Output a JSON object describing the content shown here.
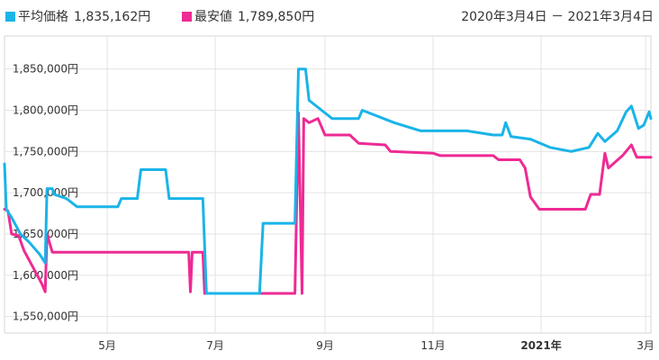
{
  "chart_data": {
    "type": "line",
    "date_range": "2020年3月4日 － 2021年3月4日",
    "ylim": [
      1530000,
      1890000
    ],
    "y_ticks": [
      {
        "value": 1550000,
        "label": "1,550,000円"
      },
      {
        "value": 1600000,
        "label": "1,600,000円"
      },
      {
        "value": 1650000,
        "label": "1,650,000円"
      },
      {
        "value": 1700000,
        "label": "1,700,000円"
      },
      {
        "value": 1750000,
        "label": "1,750,000円"
      },
      {
        "value": 1800000,
        "label": "1,800,000円"
      },
      {
        "value": 1850000,
        "label": "1,850,000円"
      }
    ],
    "xlim": [
      "2020-03-04",
      "2021-03-04"
    ],
    "x_ticks": [
      {
        "date": "2020-05-01",
        "label": "5月",
        "bold": false
      },
      {
        "date": "2020-07-01",
        "label": "7月",
        "bold": false
      },
      {
        "date": "2020-09-01",
        "label": "9月",
        "bold": false
      },
      {
        "date": "2020-11-01",
        "label": "11月",
        "bold": false
      },
      {
        "date": "2021-01-01",
        "label": "2021年",
        "bold": true
      },
      {
        "date": "2021-03-01",
        "label": "3月",
        "bold": false
      }
    ],
    "grid": true,
    "legend_position": "top-left",
    "series": [
      {
        "name": "平均価格",
        "legend_value": "1,835,162円",
        "color": "#1ab4e8",
        "points": [
          [
            "2020-03-04",
            1735000
          ],
          [
            "2020-03-05",
            1680000
          ],
          [
            "2020-03-08",
            1670000
          ],
          [
            "2020-03-13",
            1650000
          ],
          [
            "2020-03-18",
            1640000
          ],
          [
            "2020-03-24",
            1625000
          ],
          [
            "2020-03-27",
            1615000
          ],
          [
            "2020-03-28",
            1705000
          ],
          [
            "2020-03-31",
            1705000
          ],
          [
            "2020-04-01",
            1698000
          ],
          [
            "2020-04-08",
            1693000
          ],
          [
            "2020-04-14",
            1683000
          ],
          [
            "2020-05-07",
            1683000
          ],
          [
            "2020-05-09",
            1693000
          ],
          [
            "2020-05-18",
            1693000
          ],
          [
            "2020-05-20",
            1728000
          ],
          [
            "2020-06-03",
            1728000
          ],
          [
            "2020-06-05",
            1693000
          ],
          [
            "2020-06-24",
            1693000
          ],
          [
            "2020-06-26",
            1578000
          ],
          [
            "2020-07-26",
            1578000
          ],
          [
            "2020-07-28",
            1663000
          ],
          [
            "2020-08-15",
            1663000
          ],
          [
            "2020-08-17",
            1850000
          ],
          [
            "2020-08-21",
            1850000
          ],
          [
            "2020-08-23",
            1812000
          ],
          [
            "2020-09-05",
            1790000
          ],
          [
            "2020-09-20",
            1790000
          ],
          [
            "2020-09-22",
            1800000
          ],
          [
            "2020-10-10",
            1785000
          ],
          [
            "2020-10-25",
            1775000
          ],
          [
            "2020-11-20",
            1775000
          ],
          [
            "2020-12-05",
            1770000
          ],
          [
            "2020-12-10",
            1770000
          ],
          [
            "2020-12-12",
            1785000
          ],
          [
            "2020-12-15",
            1768000
          ],
          [
            "2020-12-26",
            1765000
          ],
          [
            "2021-01-06",
            1755000
          ],
          [
            "2021-01-18",
            1750000
          ],
          [
            "2021-01-28",
            1755000
          ],
          [
            "2021-02-02",
            1772000
          ],
          [
            "2021-02-06",
            1762000
          ],
          [
            "2021-02-13",
            1775000
          ],
          [
            "2021-02-18",
            1798000
          ],
          [
            "2021-02-21",
            1805000
          ],
          [
            "2021-02-25",
            1778000
          ],
          [
            "2021-02-28",
            1782000
          ],
          [
            "2021-03-03",
            1798000
          ],
          [
            "2021-03-04",
            1790000
          ]
        ]
      },
      {
        "name": "最安値",
        "legend_value": "1,789,850円",
        "color": "#ee2a94",
        "points": [
          [
            "2020-03-04",
            1680000
          ],
          [
            "2020-03-06",
            1678000
          ],
          [
            "2020-03-08",
            1650000
          ],
          [
            "2020-03-12",
            1648000
          ],
          [
            "2020-03-15",
            1630000
          ],
          [
            "2020-03-20",
            1610000
          ],
          [
            "2020-03-25",
            1590000
          ],
          [
            "2020-03-27",
            1580000
          ],
          [
            "2020-03-28",
            1650000
          ],
          [
            "2020-03-31",
            1628000
          ],
          [
            "2020-06-16",
            1628000
          ],
          [
            "2020-06-17",
            1580000
          ],
          [
            "2020-06-18",
            1628000
          ],
          [
            "2020-06-24",
            1628000
          ],
          [
            "2020-06-25",
            1578000
          ],
          [
            "2020-08-15",
            1578000
          ],
          [
            "2020-08-17",
            1797000
          ],
          [
            "2020-08-19",
            1578000
          ],
          [
            "2020-08-20",
            1790000
          ],
          [
            "2020-08-23",
            1785000
          ],
          [
            "2020-08-28",
            1790000
          ],
          [
            "2020-09-01",
            1770000
          ],
          [
            "2020-09-15",
            1770000
          ],
          [
            "2020-09-20",
            1760000
          ],
          [
            "2020-10-05",
            1758000
          ],
          [
            "2020-10-08",
            1750000
          ],
          [
            "2020-11-01",
            1748000
          ],
          [
            "2020-11-05",
            1745000
          ],
          [
            "2020-12-05",
            1745000
          ],
          [
            "2020-12-08",
            1740000
          ],
          [
            "2020-12-20",
            1740000
          ],
          [
            "2020-12-23",
            1730000
          ],
          [
            "2020-12-26",
            1695000
          ],
          [
            "2020-12-31",
            1680000
          ],
          [
            "2021-01-26",
            1680000
          ],
          [
            "2021-01-29",
            1698000
          ],
          [
            "2021-02-03",
            1698000
          ],
          [
            "2021-02-06",
            1748000
          ],
          [
            "2021-02-08",
            1730000
          ],
          [
            "2021-02-16",
            1745000
          ],
          [
            "2021-02-21",
            1758000
          ],
          [
            "2021-02-24",
            1743000
          ],
          [
            "2021-03-04",
            1743000
          ]
        ]
      }
    ]
  }
}
